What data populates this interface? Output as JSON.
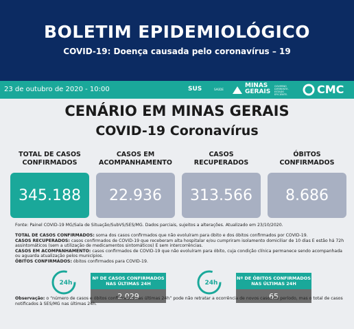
{
  "header": {
    "title": "BOLETIM EPIDEMIOLÓGICO",
    "subtitle": "COVID-19: Doença causada pelo coronavírus – 19"
  },
  "bar": {
    "date": "23 de outubro de 2020 - 10:00",
    "logos": [
      "SUS",
      "SAÚDE",
      "MINAS GERAIS",
      "GOVERNO DIFERENTE. ESTADO EFICIENTE.",
      "CMC"
    ]
  },
  "scenario": {
    "title": "CENÁRIO EM MINAS GERAIS",
    "subtitle": "COVID-19 Coronavírus"
  },
  "cards": [
    {
      "label": "TOTAL DE CASOS CONFIRMADOS",
      "value": "345.188"
    },
    {
      "label": "CASOS EM ACOMPANHAMENTO",
      "value": "22.936"
    },
    {
      "label": "CASOS RECUPERADOS",
      "value": "313.566"
    },
    {
      "label": "ÓBITOS CONFIRMADOS",
      "value": "8.686"
    }
  ],
  "source": "Fonte: Painel COVID-19 MG/Sala de Situação/SubVS/SES/MG. Dados parciais, sujeitos a alterações. Atualizado em 23/10/2020.",
  "definitions": [
    {
      "term": "TOTAL DE CASOS CONFIRMADOS:",
      "text": " soma dos casos confirmados que não evoluíram para óbito e dos óbitos confirmados por COVID-19."
    },
    {
      "term": "CASOS RECUPERADOS:",
      "text": " casos confirmados de COVID-19 que receberam alta hospitalar e/ou cumpriram isolamento domiciliar de 10 dias E estão há 72h assintomáticos (sem a utilização de medicamentos sintomáticos) E sem intercorrências."
    },
    {
      "term": "CASOS EM ACOMPANHAMENTO:",
      "text": " casos confirmados de COVID-19 que não evoluíram para óbito, cuja condição clínica permanece sendo acompanhada ou aguarda atualização pelos municípios."
    },
    {
      "term": "ÓBITOS CONFIRMADOS:",
      "text": " óbitos confirmados para COVID-19."
    }
  ],
  "daily": [
    {
      "icon": "24h",
      "label": "Nº DE CASOS CONFIRMADOS NAS ÚLTIMAS 24H",
      "value": "2.029"
    },
    {
      "icon": "24h",
      "label": "Nº DE ÓBITOS CONFIRMADOS NAS ÚLTIMAS 24H",
      "value": "65"
    }
  ],
  "note": {
    "term": "Observação:",
    "text": " o “número de casos e óbitos confirmados nas últimas 24h” pode não retratar a ocorrência de novos casos no período, mas o total de casos notificados à SES/MG nas últimas 24h."
  }
}
